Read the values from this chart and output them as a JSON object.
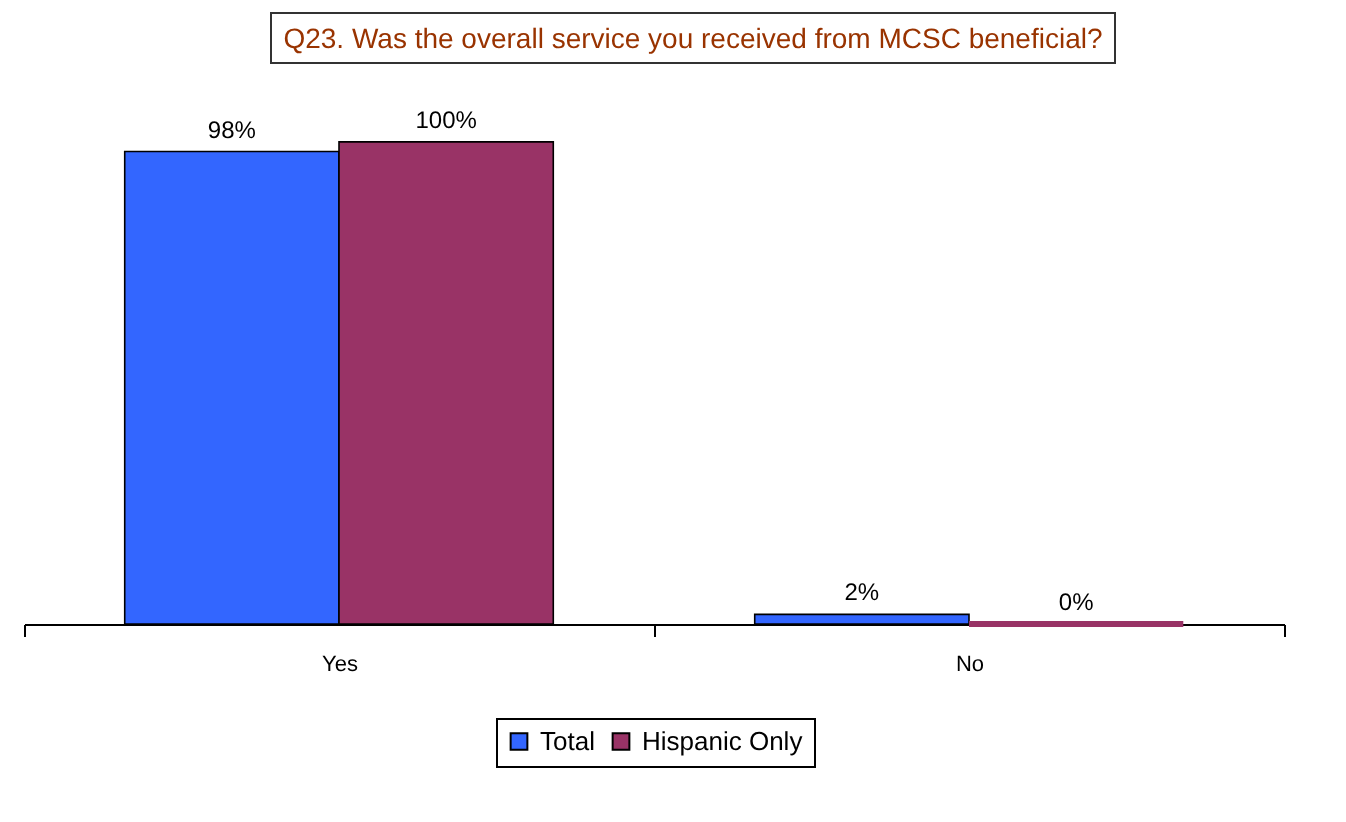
{
  "chart_data": {
    "type": "bar",
    "title": "Q23. Was the overall service you received from MCSC beneficial?",
    "categories": [
      "Yes",
      "No"
    ],
    "series": [
      {
        "name": "Total",
        "color": "#3366ff",
        "values": [
          98,
          2
        ],
        "value_labels": [
          "98%",
          "2%"
        ]
      },
      {
        "name": "Hispanic Only",
        "color": "#993366",
        "values": [
          100,
          0
        ],
        "value_labels": [
          "100%",
          "0%"
        ]
      }
    ],
    "legend": "bottom",
    "grid": false
  }
}
